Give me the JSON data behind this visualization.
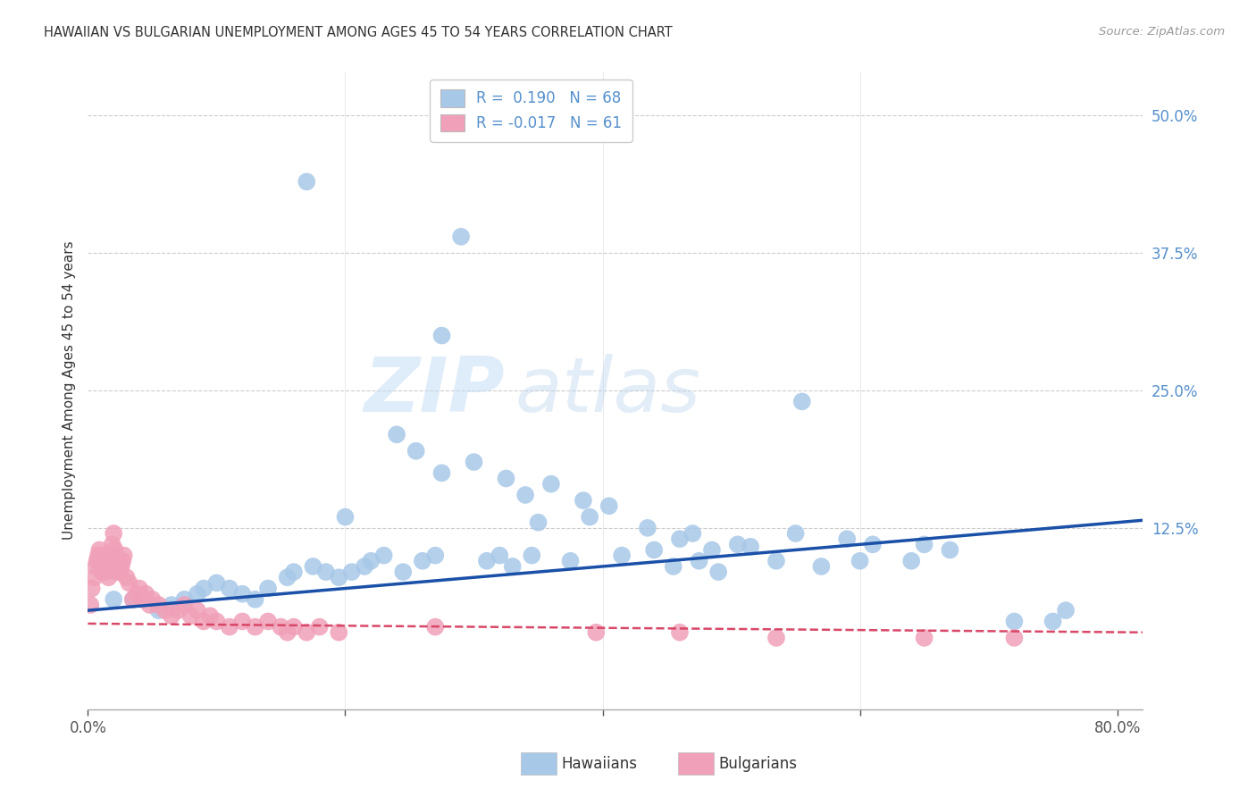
{
  "title": "HAWAIIAN VS BULGARIAN UNEMPLOYMENT AMONG AGES 45 TO 54 YEARS CORRELATION CHART",
  "source": "Source: ZipAtlas.com",
  "ylabel": "Unemployment Among Ages 45 to 54 years",
  "xlim": [
    0.0,
    0.82
  ],
  "ylim": [
    -0.04,
    0.54
  ],
  "hawaiian_R": 0.19,
  "hawaiian_N": 68,
  "bulgarian_R": -0.017,
  "bulgarian_N": 61,
  "hawaiian_color": "#a8c8e8",
  "hawaiian_line_color": "#1a50a8",
  "bulgarian_color": "#f0a0b8",
  "bulgarian_line_color": "#d84868",
  "grid_color": "#cccccc",
  "watermark_zip": "ZIP",
  "watermark_atlas": "atlas",
  "title_color": "#333333",
  "source_color": "#999999",
  "ytick_color": "#5590cc",
  "xtick_color": "#555555",
  "legend_text_color": "#5590cc",
  "hawaiian_x": [
    0.17,
    0.29,
    0.275,
    0.555,
    0.24,
    0.255,
    0.3,
    0.275,
    0.325,
    0.36,
    0.34,
    0.385,
    0.405,
    0.2,
    0.39,
    0.35,
    0.435,
    0.47,
    0.46,
    0.505,
    0.515,
    0.485,
    0.55,
    0.59,
    0.61,
    0.65,
    0.67,
    0.72,
    0.75,
    0.76,
    0.02,
    0.035,
    0.055,
    0.065,
    0.075,
    0.085,
    0.09,
    0.1,
    0.11,
    0.12,
    0.13,
    0.14,
    0.155,
    0.16,
    0.175,
    0.185,
    0.195,
    0.205,
    0.215,
    0.22,
    0.23,
    0.245,
    0.26,
    0.27,
    0.31,
    0.32,
    0.33,
    0.345,
    0.375,
    0.415,
    0.44,
    0.455,
    0.475,
    0.49,
    0.535,
    0.57,
    0.6,
    0.64
  ],
  "hawaiian_y": [
    0.44,
    0.39,
    0.3,
    0.24,
    0.21,
    0.195,
    0.185,
    0.175,
    0.17,
    0.165,
    0.155,
    0.15,
    0.145,
    0.135,
    0.135,
    0.13,
    0.125,
    0.12,
    0.115,
    0.11,
    0.108,
    0.105,
    0.12,
    0.115,
    0.11,
    0.11,
    0.105,
    0.04,
    0.04,
    0.05,
    0.06,
    0.06,
    0.05,
    0.055,
    0.06,
    0.065,
    0.07,
    0.075,
    0.07,
    0.065,
    0.06,
    0.07,
    0.08,
    0.085,
    0.09,
    0.085,
    0.08,
    0.085,
    0.09,
    0.095,
    0.1,
    0.085,
    0.095,
    0.1,
    0.095,
    0.1,
    0.09,
    0.1,
    0.095,
    0.1,
    0.105,
    0.09,
    0.095,
    0.085,
    0.095,
    0.09,
    0.095,
    0.095
  ],
  "bulgarian_x": [
    0.002,
    0.003,
    0.005,
    0.006,
    0.007,
    0.008,
    0.009,
    0.01,
    0.011,
    0.012,
    0.013,
    0.014,
    0.015,
    0.016,
    0.017,
    0.018,
    0.019,
    0.02,
    0.021,
    0.022,
    0.023,
    0.024,
    0.025,
    0.026,
    0.027,
    0.028,
    0.03,
    0.032,
    0.035,
    0.038,
    0.04,
    0.042,
    0.045,
    0.048,
    0.05,
    0.055,
    0.06,
    0.065,
    0.07,
    0.075,
    0.08,
    0.085,
    0.09,
    0.095,
    0.1,
    0.11,
    0.12,
    0.13,
    0.14,
    0.15,
    0.155,
    0.16,
    0.17,
    0.18,
    0.195,
    0.27,
    0.395,
    0.46,
    0.535,
    0.65,
    0.72
  ],
  "bulgarian_y": [
    0.055,
    0.07,
    0.08,
    0.09,
    0.095,
    0.1,
    0.105,
    0.095,
    0.085,
    0.09,
    0.1,
    0.085,
    0.095,
    0.08,
    0.09,
    0.1,
    0.11,
    0.12,
    0.105,
    0.095,
    0.085,
    0.095,
    0.085,
    0.09,
    0.095,
    0.1,
    0.08,
    0.075,
    0.06,
    0.065,
    0.07,
    0.06,
    0.065,
    0.055,
    0.06,
    0.055,
    0.05,
    0.045,
    0.05,
    0.055,
    0.045,
    0.05,
    0.04,
    0.045,
    0.04,
    0.035,
    0.04,
    0.035,
    0.04,
    0.035,
    0.03,
    0.035,
    0.03,
    0.035,
    0.03,
    0.035,
    0.03,
    0.03,
    0.025,
    0.025,
    0.025
  ]
}
